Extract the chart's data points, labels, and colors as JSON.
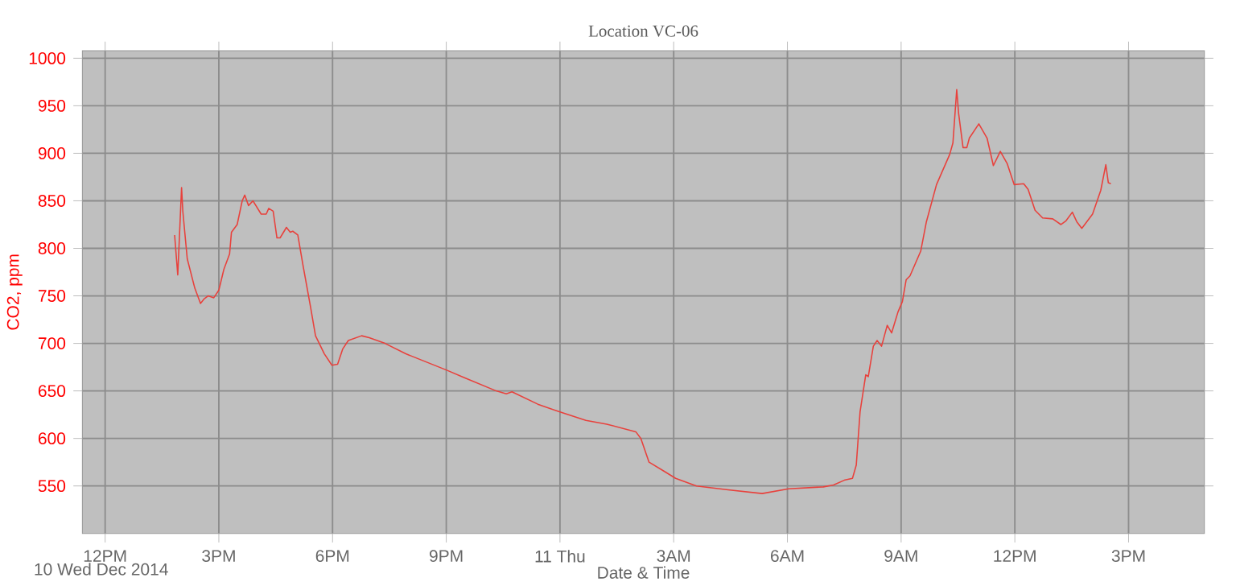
{
  "chart_data": {
    "type": "line",
    "title": "Location VC-06",
    "xlabel": "Date & Time",
    "ylabel": "CO2, ppm",
    "annotations": [
      "10 Wed Dec 2014"
    ],
    "color": "#e8413c",
    "grid": true,
    "xlim": [
      "2014-12-10T11:24",
      "2014-12-11T17:00"
    ],
    "ylim": [
      500,
      1008
    ],
    "xticks": [
      {
        "value": "2014-12-10T12:00",
        "label": "12PM"
      },
      {
        "value": "2014-12-10T15:00",
        "label": "3PM"
      },
      {
        "value": "2014-12-10T18:00",
        "label": "6PM"
      },
      {
        "value": "2014-12-10T21:00",
        "label": "9PM"
      },
      {
        "value": "2014-12-11T00:00",
        "label": "11 Thu"
      },
      {
        "value": "2014-12-11T03:00",
        "label": "3AM"
      },
      {
        "value": "2014-12-11T06:00",
        "label": "6AM"
      },
      {
        "value": "2014-12-11T09:00",
        "label": "9AM"
      },
      {
        "value": "2014-12-11T12:00",
        "label": "12PM"
      },
      {
        "value": "2014-12-11T15:00",
        "label": "3PM"
      }
    ],
    "yticks": [
      550,
      600,
      650,
      700,
      750,
      800,
      850,
      900,
      950,
      1000
    ],
    "x": [
      "2014-12-10T13:50",
      "2014-12-10T13:55",
      "2014-12-10T14:01",
      "2014-12-10T14:03",
      "2014-12-10T14:10",
      "2014-12-10T14:22",
      "2014-12-10T14:31",
      "2014-12-10T14:37",
      "2014-12-10T14:43",
      "2014-12-10T14:52",
      "2014-12-10T15:00",
      "2014-12-10T15:08",
      "2014-12-10T15:17",
      "2014-12-10T15:20",
      "2014-12-10T15:29",
      "2014-12-10T15:37",
      "2014-12-10T15:41",
      "2014-12-10T15:47",
      "2014-12-10T15:54",
      "2014-12-10T16:07",
      "2014-12-10T16:15",
      "2014-12-10T16:19",
      "2014-12-10T16:26",
      "2014-12-10T16:32",
      "2014-12-10T16:37",
      "2014-12-10T16:47",
      "2014-12-10T16:53",
      "2014-12-10T16:57",
      "2014-12-10T17:05",
      "2014-12-10T17:13",
      "2014-12-10T17:25",
      "2014-12-10T17:33",
      "2014-12-10T17:47",
      "2014-12-10T17:59",
      "2014-12-10T18:08",
      "2014-12-10T18:16",
      "2014-12-10T18:25",
      "2014-12-10T18:46",
      "2014-12-10T18:58",
      "2014-12-10T19:23",
      "2014-12-10T19:56",
      "2014-12-10T21:00",
      "2014-12-10T21:28",
      "2014-12-10T22:19",
      "2014-12-10T22:35",
      "2014-12-10T22:44",
      "2014-12-10T23:25",
      "2014-12-10T23:59",
      "2014-12-11T00:41",
      "2014-12-11T01:14",
      "2014-12-11T02:00",
      "2014-12-11T02:08",
      "2014-12-11T02:21",
      "2014-12-11T02:46",
      "2014-12-11T03:03",
      "2014-12-11T03:36",
      "2014-12-11T04:26",
      "2014-12-11T05:20",
      "2014-12-11T06:02",
      "2014-12-11T06:57",
      "2014-12-11T07:13",
      "2014-12-11T07:30",
      "2014-12-11T07:43",
      "2014-12-11T07:49",
      "2014-12-11T07:55",
      "2014-12-11T08:04",
      "2014-12-11T08:08",
      "2014-12-11T08:16",
      "2014-12-11T08:22",
      "2014-12-11T08:29",
      "2014-12-11T08:38",
      "2014-12-11T08:45",
      "2014-12-11T08:55",
      "2014-12-11T09:02",
      "2014-12-11T09:08",
      "2014-12-11T09:14",
      "2014-12-11T09:31",
      "2014-12-11T09:40",
      "2014-12-11T09:56",
      "2014-12-11T10:17",
      "2014-12-11T10:22",
      "2014-12-11T10:28",
      "2014-12-11T10:31",
      "2014-12-11T10:38",
      "2014-12-11T10:44",
      "2014-12-11T10:48",
      "2014-12-11T11:03",
      "2014-12-11T11:16",
      "2014-12-11T11:26",
      "2014-12-11T11:37",
      "2014-12-11T11:48",
      "2014-12-11T11:59",
      "2014-12-11T12:14",
      "2014-12-11T12:21",
      "2014-12-11T12:32",
      "2014-12-11T12:44",
      "2014-12-11T13:00",
      "2014-12-11T13:13",
      "2014-12-11T13:21",
      "2014-12-11T13:31",
      "2014-12-11T13:38",
      "2014-12-11T13:46",
      "2014-12-11T14:03",
      "2014-12-11T14:16",
      "2014-12-11T14:24",
      "2014-12-11T14:28",
      "2014-12-11T14:32"
    ],
    "values": [
      814,
      772,
      864,
      839,
      789,
      758,
      742,
      747,
      750,
      748,
      756,
      778,
      794,
      817,
      825,
      850,
      856,
      845,
      850,
      836,
      836,
      842,
      839,
      811,
      811,
      822,
      817,
      818,
      814,
      783,
      739,
      708,
      689,
      677,
      678,
      694,
      703,
      708,
      706,
      700,
      689,
      672,
      664,
      650,
      647,
      649,
      636,
      628,
      619,
      615,
      607,
      600,
      575,
      565,
      558,
      550,
      546,
      542,
      547,
      549,
      551,
      556,
      558,
      572,
      628,
      667,
      665,
      697,
      703,
      697,
      719,
      711,
      733,
      744,
      767,
      771,
      797,
      828,
      867,
      899,
      911,
      967,
      942,
      906,
      906,
      916,
      931,
      916,
      887,
      902,
      889,
      867,
      868,
      862,
      840,
      832,
      831,
      825,
      829,
      838,
      828,
      821,
      836,
      861,
      888,
      869,
      868
    ]
  }
}
